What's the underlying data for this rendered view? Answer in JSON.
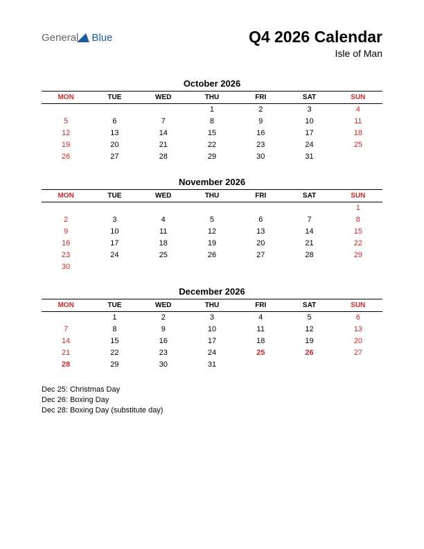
{
  "logo": {
    "gen": "General",
    "blue": "Blue"
  },
  "title": "Q4 2026 Calendar",
  "subtitle": "Isle of Man",
  "weekdays": [
    "MON",
    "TUE",
    "WED",
    "THU",
    "FRI",
    "SAT",
    "SUN"
  ],
  "weekday_colors": [
    "#c62828",
    "#000000",
    "#000000",
    "#000000",
    "#000000",
    "#000000",
    "#c62828"
  ],
  "background_color": "#ffffff",
  "text_color": "#000000",
  "holiday_color": "#c62828",
  "months": [
    {
      "name": "October 2026",
      "rows": [
        [
          null,
          null,
          null,
          {
            "d": "1"
          },
          {
            "d": "2"
          },
          {
            "d": "3"
          },
          {
            "d": "4",
            "c": "red"
          }
        ],
        [
          {
            "d": "5",
            "c": "red"
          },
          {
            "d": "6"
          },
          {
            "d": "7"
          },
          {
            "d": "8"
          },
          {
            "d": "9"
          },
          {
            "d": "10"
          },
          {
            "d": "11",
            "c": "red"
          }
        ],
        [
          {
            "d": "12",
            "c": "red"
          },
          {
            "d": "13"
          },
          {
            "d": "14"
          },
          {
            "d": "15"
          },
          {
            "d": "16"
          },
          {
            "d": "17"
          },
          {
            "d": "18",
            "c": "red"
          }
        ],
        [
          {
            "d": "19",
            "c": "red"
          },
          {
            "d": "20"
          },
          {
            "d": "21"
          },
          {
            "d": "22"
          },
          {
            "d": "23"
          },
          {
            "d": "24"
          },
          {
            "d": "25",
            "c": "red"
          }
        ],
        [
          {
            "d": "26",
            "c": "red"
          },
          {
            "d": "27"
          },
          {
            "d": "28"
          },
          {
            "d": "29"
          },
          {
            "d": "30"
          },
          {
            "d": "31"
          },
          null
        ]
      ]
    },
    {
      "name": "November 2026",
      "rows": [
        [
          null,
          null,
          null,
          null,
          null,
          null,
          {
            "d": "1",
            "c": "red"
          }
        ],
        [
          {
            "d": "2",
            "c": "red"
          },
          {
            "d": "3"
          },
          {
            "d": "4"
          },
          {
            "d": "5"
          },
          {
            "d": "6"
          },
          {
            "d": "7"
          },
          {
            "d": "8",
            "c": "red"
          }
        ],
        [
          {
            "d": "9",
            "c": "red"
          },
          {
            "d": "10"
          },
          {
            "d": "11"
          },
          {
            "d": "12"
          },
          {
            "d": "13"
          },
          {
            "d": "14"
          },
          {
            "d": "15",
            "c": "red"
          }
        ],
        [
          {
            "d": "16",
            "c": "red"
          },
          {
            "d": "17"
          },
          {
            "d": "18"
          },
          {
            "d": "19"
          },
          {
            "d": "20"
          },
          {
            "d": "21"
          },
          {
            "d": "22",
            "c": "red"
          }
        ],
        [
          {
            "d": "23",
            "c": "red"
          },
          {
            "d": "24"
          },
          {
            "d": "25"
          },
          {
            "d": "26"
          },
          {
            "d": "27"
          },
          {
            "d": "28"
          },
          {
            "d": "29",
            "c": "red"
          }
        ],
        [
          {
            "d": "30",
            "c": "red"
          },
          null,
          null,
          null,
          null,
          null,
          null
        ]
      ]
    },
    {
      "name": "December 2026",
      "rows": [
        [
          null,
          {
            "d": "1"
          },
          {
            "d": "2"
          },
          {
            "d": "3"
          },
          {
            "d": "4"
          },
          {
            "d": "5"
          },
          {
            "d": "6",
            "c": "red"
          }
        ],
        [
          {
            "d": "7",
            "c": "red"
          },
          {
            "d": "8"
          },
          {
            "d": "9"
          },
          {
            "d": "10"
          },
          {
            "d": "11"
          },
          {
            "d": "12"
          },
          {
            "d": "13",
            "c": "red"
          }
        ],
        [
          {
            "d": "14",
            "c": "red"
          },
          {
            "d": "15"
          },
          {
            "d": "16"
          },
          {
            "d": "17"
          },
          {
            "d": "18"
          },
          {
            "d": "19"
          },
          {
            "d": "20",
            "c": "red"
          }
        ],
        [
          {
            "d": "21",
            "c": "red"
          },
          {
            "d": "22"
          },
          {
            "d": "23"
          },
          {
            "d": "24"
          },
          {
            "d": "25",
            "c": "redb"
          },
          {
            "d": "26",
            "c": "redb"
          },
          {
            "d": "27",
            "c": "red"
          }
        ],
        [
          {
            "d": "28",
            "c": "redb"
          },
          {
            "d": "29"
          },
          {
            "d": "30"
          },
          {
            "d": "31"
          },
          null,
          null,
          null
        ]
      ]
    }
  ],
  "holidays": [
    "Dec 25: Christmas Day",
    "Dec 26: Boxing Day",
    "Dec 28: Boxing Day (substitute day)"
  ]
}
